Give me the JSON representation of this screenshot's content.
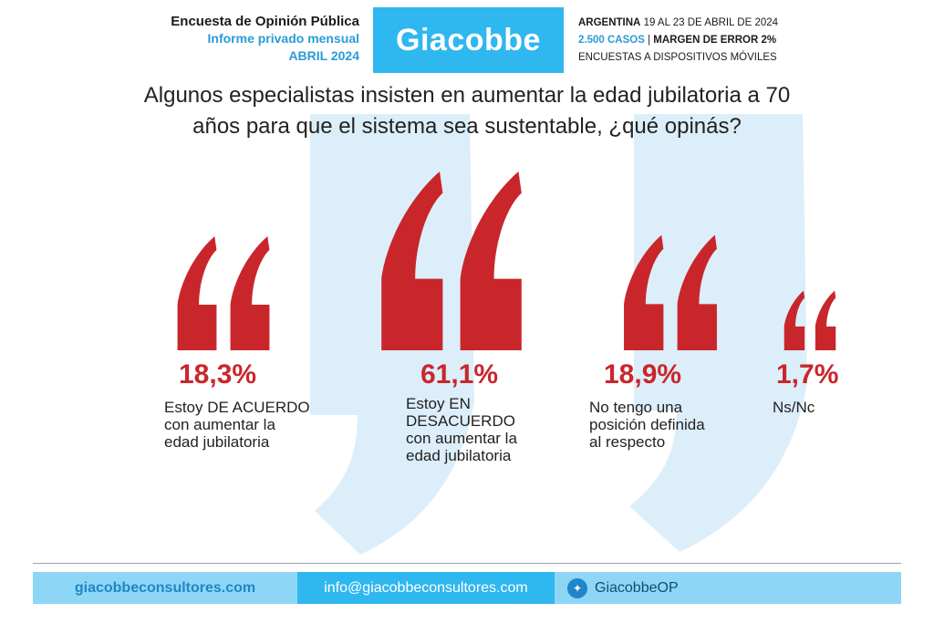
{
  "header": {
    "left_line1": "Encuesta de Opinión Pública",
    "left_line2": "Informe privado mensual",
    "left_line3": "ABRIL 2024",
    "brand": "Giacobbe",
    "right_line1_bold": "ARGENTINA",
    "right_line1_rest": "19 AL 23 DE ABRIL DE 2024",
    "right_line2_cases": "2.500 CASOS",
    "right_line2_sep": "|",
    "right_line2_margin": "MARGEN DE ERROR 2%",
    "right_line3": "ENCUESTAS A DISPOSITIVOS MÓVILES"
  },
  "chart_data": {
    "type": "bar",
    "title_line1": "Algunos especialistas insisten en aumentar la edad jubilatoria a 70",
    "title_line2": "años para que el sistema sea sustentable, ¿qué opinás?",
    "categories": [
      "Estoy DE ACUERDO con aumentar la edad jubilatoria",
      "Estoy EN DESACUERDO con aumentar la edad jubilatoria",
      "No tengo una posición definida al respecto",
      "Ns/Nc"
    ],
    "values": [
      18.3,
      61.1,
      18.9,
      1.7
    ],
    "value_labels": [
      "18,3%",
      "61,1%",
      "18,9%",
      "1,7%"
    ],
    "label_lines": [
      [
        "Estoy DE ACUERDO",
        "con aumentar la",
        "edad jubilatoria"
      ],
      [
        "Estoy EN",
        "DESACUERDO",
        "con aumentar la",
        "edad jubilatoria"
      ],
      [
        "No tengo una",
        "posición definida",
        "al respecto"
      ],
      [
        "Ns/Nc"
      ]
    ],
    "mark_color": "#c9262c",
    "background_mark_color": "#dceef9"
  },
  "footer": {
    "website": "giacobbeconsultores.com",
    "email": "info@giacobbeconsultores.com",
    "twitter_icon": "twitter-bird-icon",
    "twitter": "GiacobbeOP"
  },
  "colors": {
    "accent_blue": "#2fb7ef",
    "light_blue": "#8ed6f6",
    "red": "#c9262c"
  }
}
